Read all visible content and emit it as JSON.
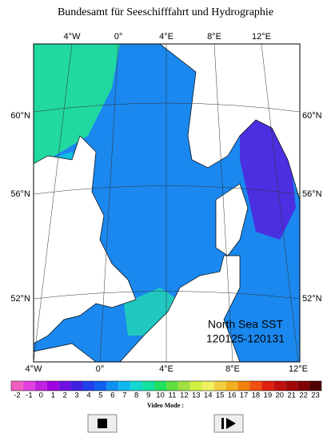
{
  "header": {
    "title": "Bundesamt für Seeschifffahrt und Hydrographie"
  },
  "map": {
    "top_lon_labels": [
      "4°W",
      "0°",
      "4°E",
      "8°E",
      "12°E"
    ],
    "bottom_lon_labels": [
      "4°W",
      "0°",
      "4°E",
      "8°E",
      "12°E"
    ],
    "left_lat_labels": [
      "60°N",
      "56°N",
      "52°N"
    ],
    "right_lat_labels": [
      "60°N",
      "56°N",
      "52°N"
    ],
    "label_lines": [
      "North Sea SST",
      "120125-120131"
    ]
  },
  "colorbar": {
    "values": [
      -2,
      -1,
      0,
      1,
      2,
      3,
      4,
      5,
      6,
      7,
      8,
      9,
      10,
      11,
      12,
      13,
      14,
      15,
      16,
      17,
      18,
      19,
      20,
      21,
      22,
      23
    ],
    "colors": [
      "#f060c0",
      "#e040e0",
      "#c020e0",
      "#a000e0",
      "#7010e0",
      "#4020e0",
      "#2040f0",
      "#1060f0",
      "#1090f0",
      "#10b8f0",
      "#10d8d0",
      "#10e0a0",
      "#20e060",
      "#60e040",
      "#a0e040",
      "#d0f040",
      "#f0f060",
      "#f0d040",
      "#f0b020",
      "#f08010",
      "#f05010",
      "#e02010",
      "#c01010",
      "#a00808",
      "#800404",
      "#500000"
    ]
  },
  "controls": {
    "mode_label": "Video Mode :"
  }
}
